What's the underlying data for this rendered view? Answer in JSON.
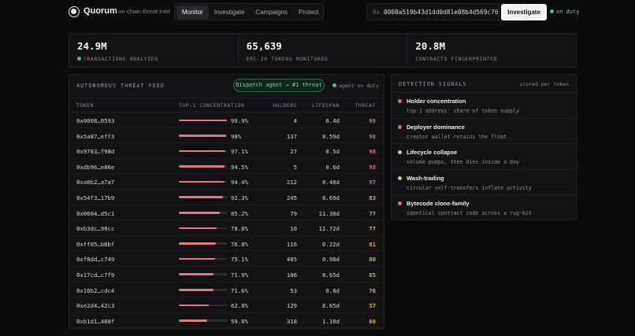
{
  "header": {
    "brand": "Quorum",
    "tagline": "/ on-chain threat intel",
    "nav": [
      "Monitor",
      "Investigate",
      "Campaigns",
      "Protect"
    ],
    "active_nav": "Monitor",
    "address_prefix": "0x",
    "address_value": "0008a519b43d1dd0d81e08b4d569c76",
    "investigate_label": "Investigate",
    "status": "on duty"
  },
  "stats": [
    {
      "value": "24.9M",
      "label": "TRANSACTIONS ANALYZED",
      "live": true
    },
    {
      "value": "65,639",
      "label": "ERC-20 TOKENS MONITORED",
      "live": false
    },
    {
      "value": "20.8M",
      "label": "CONTRACTS FINGERPRINTED",
      "live": false
    }
  ],
  "feed": {
    "title": "AUTONOMOUS THREAT FEED",
    "dispatch_label": "Dispatch agent → #1 threat",
    "agent_status": "agent on duty",
    "columns": {
      "token": "TOKEN",
      "concentration": "TOP-1 CONCENTRATION",
      "holders": "HOLDERS",
      "lifespan": "LIFESPAN",
      "threat": "THREAT"
    },
    "rows": [
      {
        "token": "0x0008…0593",
        "concentration": 99.9,
        "pct": "99.9%",
        "holders": "4",
        "lifespan": "0.4d",
        "threat": "98"
      },
      {
        "token": "0x5a87…eff3",
        "concentration": 98,
        "pct": "98%",
        "holders": "137",
        "lifespan": "0.59d",
        "threat": "98"
      },
      {
        "token": "0x9783…f98d",
        "concentration": 97.1,
        "pct": "97.1%",
        "holders": "27",
        "lifespan": "0.5d",
        "threat": "98"
      },
      {
        "token": "0xdb96…e86e",
        "concentration": 94.5,
        "pct": "94.5%",
        "holders": "5",
        "lifespan": "0.6d",
        "threat": "98"
      },
      {
        "token": "0xa0b2…a7a7",
        "concentration": 94.4,
        "pct": "94.4%",
        "holders": "212",
        "lifespan": "0.48d",
        "threat": "97"
      },
      {
        "token": "0x54f3…17b9",
        "concentration": 92.3,
        "pct": "92.3%",
        "holders": "245",
        "lifespan": "8.69d",
        "threat": "83"
      },
      {
        "token": "0x0604…d5c1",
        "concentration": 85.2,
        "pct": "85.2%",
        "holders": "79",
        "lifespan": "11.38d",
        "threat": "77"
      },
      {
        "token": "0xb3dc…90cc",
        "concentration": 78.8,
        "pct": "78.8%",
        "holders": "10",
        "lifespan": "11.72d",
        "threat": "77"
      },
      {
        "token": "0xff05…b8bf",
        "concentration": 76.8,
        "pct": "76.8%",
        "holders": "116",
        "lifespan": "0.22d",
        "threat": "81"
      },
      {
        "token": "0xf0dd…c749",
        "concentration": 75.1,
        "pct": "75.1%",
        "holders": "485",
        "lifespan": "0.98d",
        "threat": "80"
      },
      {
        "token": "0x17cd…c7f9",
        "concentration": 71.9,
        "pct": "71.9%",
        "holders": "186",
        "lifespan": "8.65d",
        "threat": "65"
      },
      {
        "token": "0x10b2…cdc4",
        "concentration": 71.6,
        "pct": "71.6%",
        "holders": "53",
        "lifespan": "0.8d",
        "threat": "76"
      },
      {
        "token": "0xe2d4…42c3",
        "concentration": 62.8,
        "pct": "62.8%",
        "holders": "129",
        "lifespan": "8.65d",
        "threat": "57"
      },
      {
        "token": "0xb1d1…488f",
        "concentration": 59.8,
        "pct": "59.8%",
        "holders": "318",
        "lifespan": "1.16d",
        "threat": "60"
      }
    ]
  },
  "signals": {
    "title": "DETECTION SIGNALS",
    "scored": "scored per token",
    "items": [
      {
        "name": "Holder concentration",
        "desc": "top-1 address' share of token supply",
        "color": "#e06b72"
      },
      {
        "name": "Deployer dominance",
        "desc": "creator wallet retains the float",
        "color": "#e06b72"
      },
      {
        "name": "Lifecycle collapse",
        "desc": "volume pumps, then dies inside a day",
        "color": "#e3c06a"
      },
      {
        "name": "Wash-trading",
        "desc": "circular self-transfers inflate activity",
        "color": "#e3c06a"
      },
      {
        "name": "Bytecode clone-family",
        "desc": "identical contract code across a rug-kit",
        "color": "#e06b72"
      }
    ]
  },
  "colors": {
    "threat_high": "#e8676e",
    "threat_mid": "#e8a94a",
    "bar_fill": "#e07a7f",
    "live": "#4fbf7a"
  }
}
